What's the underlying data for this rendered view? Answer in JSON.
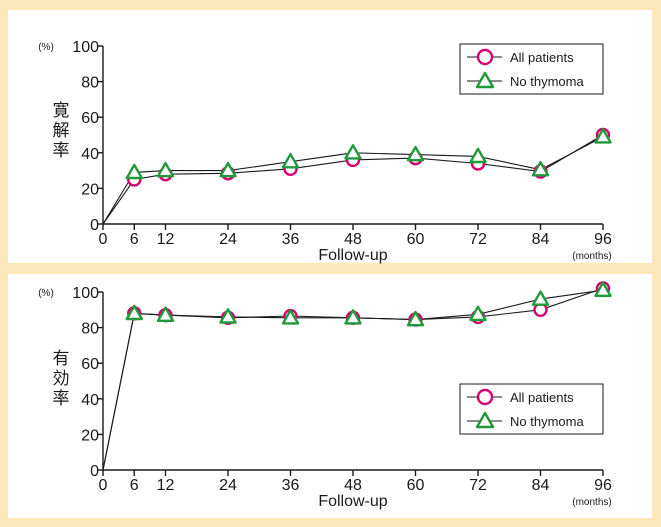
{
  "colors": {
    "background": "#fbe7b8",
    "panel": "#ffffff",
    "all_patients": "#d6006f",
    "no_thymoma": "#1f9a3a",
    "axis": "#1a1a1a"
  },
  "chart_data": [
    {
      "type": "line",
      "ylabel": "寛解率",
      "y_unit": "(%)",
      "xlabel": "Follow-up",
      "x_unit": "(months)",
      "ylim": [
        0,
        100
      ],
      "xlim": [
        0,
        96
      ],
      "yticks": [
        0,
        20,
        40,
        60,
        80,
        100
      ],
      "xticks": [
        0,
        6,
        12,
        24,
        36,
        48,
        60,
        72,
        84,
        96
      ],
      "grid": false,
      "legend_position": "top-right",
      "series": [
        {
          "name": "All patients",
          "marker": "circle",
          "x": [
            0,
            6,
            12,
            24,
            36,
            48,
            60,
            72,
            84,
            96
          ],
          "y": [
            0,
            25,
            28,
            28.5,
            31,
            36,
            37,
            34,
            29.5,
            50
          ]
        },
        {
          "name": "No thymoma",
          "marker": "triangle",
          "x": [
            0,
            6,
            12,
            24,
            36,
            48,
            60,
            72,
            84,
            96
          ],
          "y": [
            0,
            29,
            30,
            30,
            35,
            40,
            39,
            38,
            30.5,
            49
          ]
        }
      ]
    },
    {
      "type": "line",
      "ylabel": "有効率",
      "y_unit": "(%)",
      "xlabel": "Follow-up",
      "x_unit": "(months)",
      "ylim": [
        0,
        100
      ],
      "xlim": [
        0,
        96
      ],
      "yticks": [
        0,
        20,
        40,
        60,
        80,
        100
      ],
      "xticks": [
        0,
        6,
        12,
        24,
        36,
        48,
        60,
        72,
        84,
        96
      ],
      "grid": false,
      "legend_position": "bottom-right",
      "series": [
        {
          "name": "All patients",
          "marker": "circle",
          "x": [
            0,
            6,
            12,
            24,
            36,
            48,
            60,
            72,
            84,
            96
          ],
          "y": [
            0,
            88,
            87,
            85.5,
            86.5,
            85.5,
            84.5,
            86,
            90,
            102
          ]
        },
        {
          "name": "No thymoma",
          "marker": "triangle",
          "x": [
            0,
            6,
            12,
            24,
            36,
            48,
            60,
            72,
            84,
            96
          ],
          "y": [
            0,
            88,
            87,
            86,
            85.5,
            85.5,
            84.5,
            87.5,
            96,
            101
          ]
        }
      ]
    }
  ]
}
